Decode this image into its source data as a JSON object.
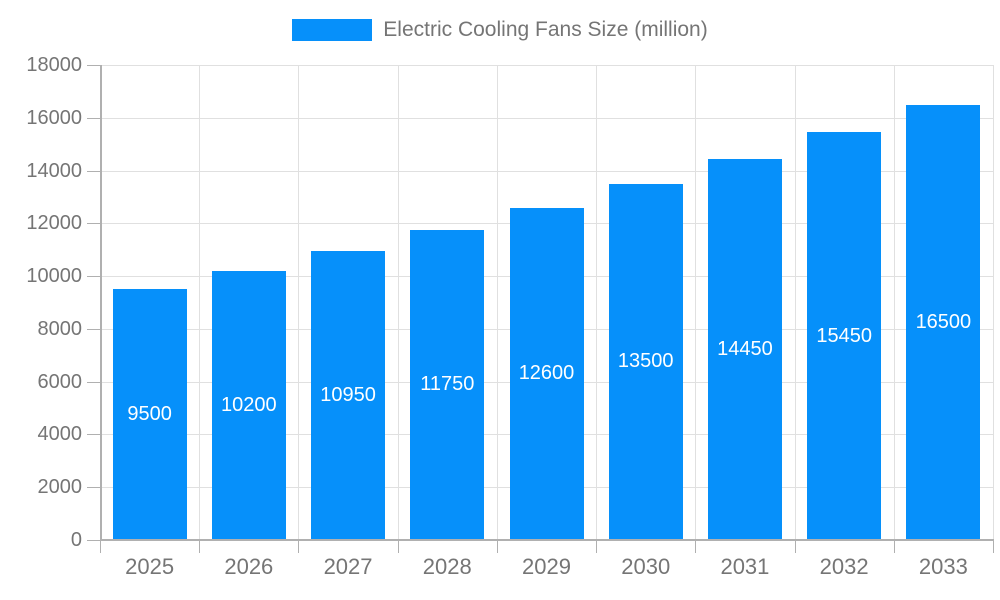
{
  "legend": {
    "label": "Electric Cooling Fans Size (million)"
  },
  "chart_data": {
    "type": "bar",
    "title": "Electric Cooling Fans Size (million)",
    "categories": [
      "2025",
      "2026",
      "2027",
      "2028",
      "2029",
      "2030",
      "2031",
      "2032",
      "2033"
    ],
    "values": [
      9500,
      10200,
      10950,
      11750,
      12600,
      13500,
      14450,
      15450,
      16500
    ],
    "series_name": "Electric Cooling Fans Size (million)",
    "xlabel": "",
    "ylabel": "",
    "ylim": [
      0,
      18000
    ],
    "ytick_step": 2000,
    "ytick_labels": [
      "0",
      "2000",
      "4000",
      "6000",
      "8000",
      "10000",
      "12000",
      "14000",
      "16000",
      "18000"
    ],
    "grid": true,
    "legend_position": "top",
    "bar_color": "#0690fa",
    "bar_label_color": "#ffffff",
    "axis_text_color": "#757575",
    "grid_color": "#e0e0e0",
    "axis_line_color": "#b0b0b0"
  }
}
